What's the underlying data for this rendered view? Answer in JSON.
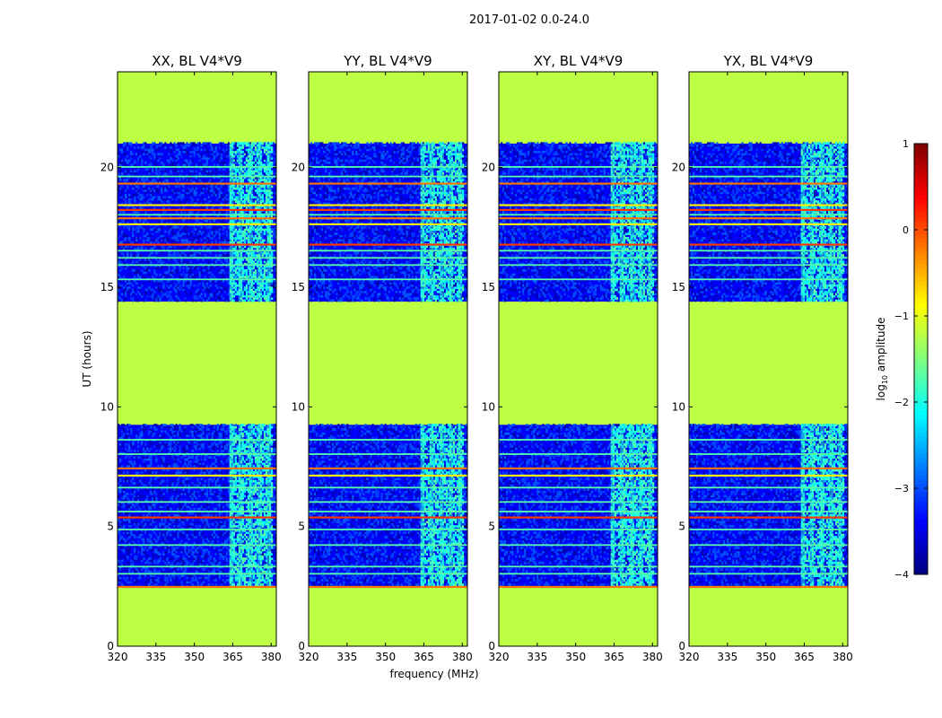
{
  "chart_data": {
    "type": "heatmap",
    "suptitle": "2017-01-02 0.0-24.0",
    "xlabel": "frequency (MHz)",
    "ylabel": "UT (hours)",
    "xlim": [
      320,
      382
    ],
    "ylim": [
      0,
      24
    ],
    "xticks": [
      320,
      335,
      350,
      365,
      380
    ],
    "yticks": [
      0,
      5,
      10,
      15,
      20
    ],
    "panels": [
      {
        "title": "XX, BL V4*V9",
        "pol": "XX"
      },
      {
        "title": "YY, BL V4*V9",
        "pol": "YY"
      },
      {
        "title": "XY, BL V4*V9",
        "pol": "XY"
      },
      {
        "title": "YX, BL V4*V9",
        "pol": "YX"
      }
    ],
    "fill_value_log10": -1.2,
    "blank_ranges_hours": [
      [
        0,
        2.4
      ],
      [
        9.2,
        14.4
      ],
      [
        21.0,
        24.0
      ]
    ],
    "noise_log10_amplitude": -3.4,
    "strong_rfi_rows_hours": [
      2.45,
      5.35,
      7.1,
      7.4,
      16.75,
      17.6,
      17.85,
      18.2,
      18.4,
      19.3
    ],
    "moderate_rfi_rows_hours": [
      3.0,
      3.3,
      4.2,
      4.85,
      5.6,
      6.0,
      6.6,
      8.0,
      8.6,
      15.3,
      15.9,
      16.2,
      16.5,
      18.0,
      19.6,
      20.0
    ],
    "rfi_band_mhz": [
      363,
      380
    ],
    "colorbar": {
      "label_main": "log",
      "label_sub": "10",
      "label_rest": " amplitude",
      "range": [
        -4,
        1
      ],
      "ticks": [
        -4,
        -3,
        -2,
        -1,
        0,
        1
      ],
      "tick_labels": [
        "−4",
        "−3",
        "−2",
        "−1",
        "0",
        "1"
      ],
      "colormap": "jet"
    }
  }
}
